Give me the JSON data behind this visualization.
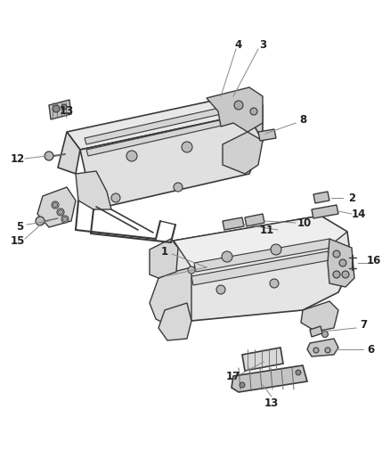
{
  "background_color": "#ffffff",
  "figure_width": 4.38,
  "figure_height": 5.33,
  "dpi": 100,
  "line_color": "#3a3a3a",
  "thin_line": "#666666",
  "label_color": "#222222",
  "leader_color": "#888888"
}
